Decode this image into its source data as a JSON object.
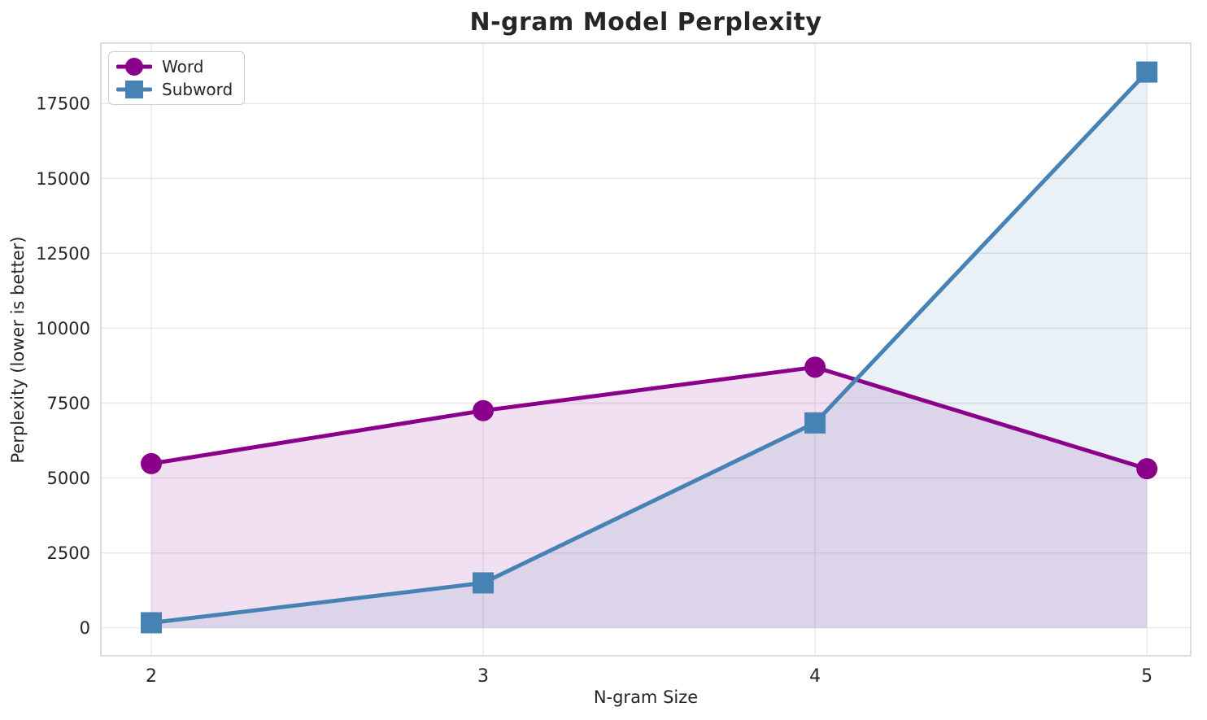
{
  "chart": {
    "title": "N-gram Model Perplexity",
    "xlabel": "N-gram Size",
    "ylabel": "Perplexity (lower is better)"
  },
  "chart_data": {
    "type": "line",
    "title": "N-gram Model Perplexity",
    "xlabel": "N-gram Size",
    "ylabel": "Perplexity (lower is better)",
    "x": [
      2,
      3,
      4,
      5
    ],
    "xticks": [
      "2",
      "3",
      "4",
      "5"
    ],
    "yticks": [
      0,
      2500,
      5000,
      7500,
      10000,
      12500,
      15000,
      17500
    ],
    "xlim": [
      1.848,
      5.132
    ],
    "ylim": [
      -931,
      19516
    ],
    "grid": true,
    "legend_position": "upper left",
    "series": [
      {
        "name": "Word",
        "marker": "circle",
        "color": "#8B008B",
        "fill_alpha": 0.12,
        "values": [
          5480,
          7250,
          8700,
          5310
        ]
      },
      {
        "name": "Subword",
        "marker": "square",
        "color": "#4682B4",
        "fill_alpha": 0.12,
        "values": [
          170,
          1500,
          6840,
          18550
        ]
      }
    ],
    "colors": {
      "word": "#8B008B",
      "subword": "#4682B4",
      "grid": "#E8E8E8",
      "spine": "#CCCCCC",
      "text": "#262626"
    }
  }
}
